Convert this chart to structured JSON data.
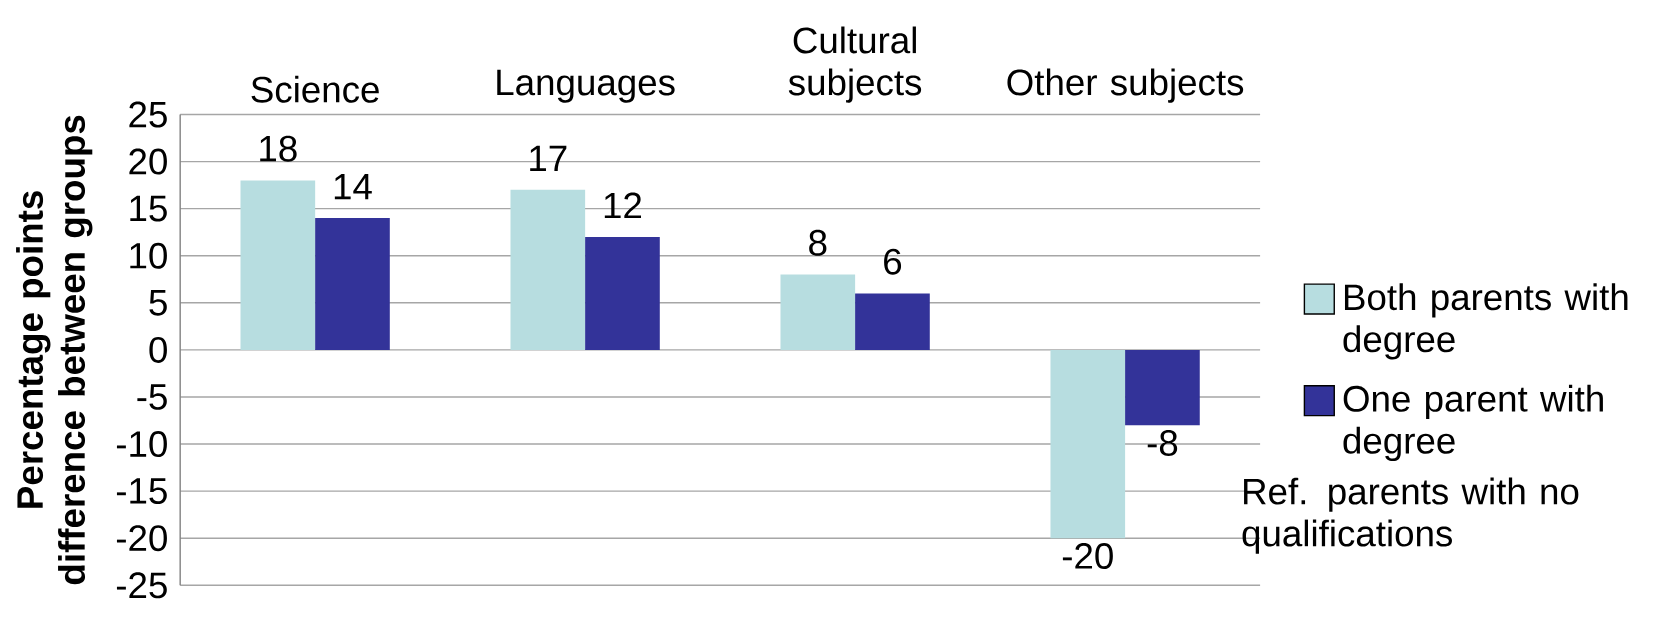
{
  "chart_data": {
    "type": "bar",
    "ylabel": "Percentage points difference between groups",
    "categories": [
      "Science",
      "Languages",
      "Cultural subjects",
      "Other subjects"
    ],
    "series": [
      {
        "name": "Both parents with degree",
        "color": "#b7dde0",
        "values": [
          18,
          17,
          8,
          -20
        ]
      },
      {
        "name": "One parent with degree",
        "color": "#333399",
        "values": [
          14,
          12,
          6,
          -8
        ]
      }
    ],
    "ylim": [
      -25,
      25
    ],
    "yticks": [
      -25,
      -20,
      -15,
      -10,
      -5,
      0,
      5,
      10,
      15,
      20,
      25
    ],
    "grid": "y",
    "legend": "right",
    "data_labels": true,
    "annotations": [
      "Ref. parents with no qualifications"
    ]
  }
}
